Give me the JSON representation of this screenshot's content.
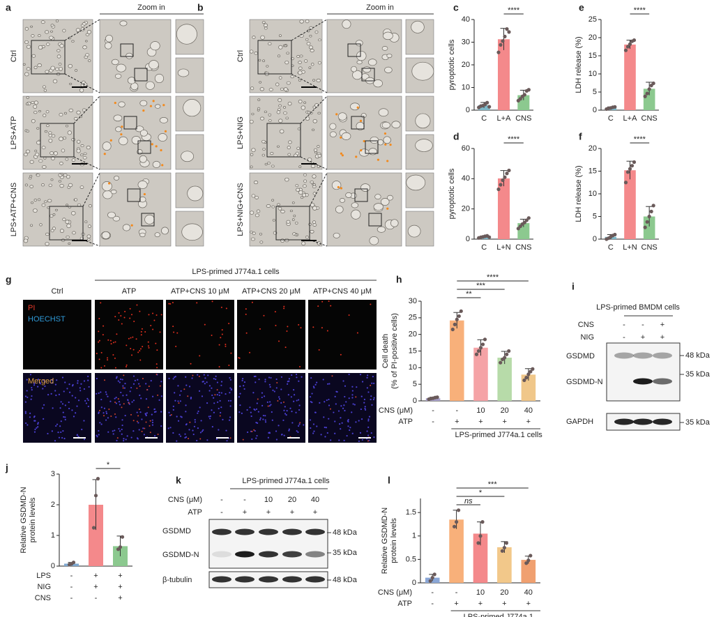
{
  "panel_labels": [
    "a",
    "b",
    "c",
    "d",
    "e",
    "f",
    "g",
    "h",
    "i",
    "j",
    "k",
    "l"
  ],
  "micrographs": [
    {
      "header": "Zoom in",
      "rows": [
        "Ctrl",
        "LPS+ATP",
        "LPS+ATP+CNS"
      ]
    },
    {
      "header": "Zoom in",
      "rows": [
        "Ctrl",
        "LPS+NIG",
        "LPS+NIG+CNS"
      ]
    }
  ],
  "fluorescence": {
    "title": "LPS-primed J774a.1 cells",
    "columns": [
      "Ctrl",
      "ATP",
      "ATP+CNS 10 μM",
      "ATP+CNS 20 μM",
      "ATP+CNS 40 μM"
    ],
    "channels": [
      "PI",
      "HOECHST"
    ],
    "merged": "Merged"
  },
  "blots": [
    {
      "title": "LPS-primed BMDM cells",
      "conditions": [
        {
          "label": "CNS",
          "values": [
            "-",
            "-",
            "+"
          ]
        },
        {
          "label": "NIG",
          "values": [
            "-",
            "+",
            "+"
          ]
        }
      ],
      "bands": [
        "GSDMD",
        "GSDMD-N",
        "GAPDH"
      ],
      "markers": [
        "48 kDa",
        "35 kDa",
        "35 kDa"
      ]
    },
    {
      "title": "LPS-primed J774a.1 cells",
      "conditions": [
        {
          "label": "CNS (μM)",
          "values": [
            "-",
            "-",
            "10",
            "20",
            "40"
          ]
        },
        {
          "label": "ATP",
          "values": [
            "-",
            "+",
            "+",
            "+",
            "+"
          ]
        }
      ],
      "bands": [
        "GSDMD",
        "GSDMD-N",
        "β-tubulin"
      ],
      "markers": [
        "48 kDa",
        "35 kDa",
        "48 kDa"
      ]
    }
  ],
  "chart_data": [
    {
      "type": "bar",
      "ylabel": [
        "pyroptotic cells"
      ],
      "categories": [
        "C",
        "L+A",
        "CNS"
      ],
      "values": [
        2.2,
        31.3,
        6.6
      ],
      "errors": [
        1.2,
        4.8,
        2.2
      ],
      "points": [
        [
          1.2,
          1.8,
          2.0,
          2.5,
          3.3,
          1.5
        ],
        [
          25.5,
          28.8,
          30.5,
          32.5,
          35.8,
          34.5
        ],
        [
          4.2,
          5.0,
          6.1,
          6.8,
          8.5,
          9.0
        ]
      ],
      "colors": [
        "#7fb8c8",
        "#f4898b",
        "#8cc98f"
      ],
      "ylim": [
        0,
        40
      ],
      "yticks": [
        0,
        10,
        20,
        30,
        40
      ],
      "significance": [
        "****"
      ]
    },
    {
      "type": "bar",
      "ylabel": [
        "pyroptotic cells"
      ],
      "categories": [
        "C",
        "L+N",
        "CNS"
      ],
      "values": [
        1.5,
        40.2,
        10.6
      ],
      "errors": [
        0.6,
        5.2,
        2.6
      ],
      "points": [
        [
          0.8,
          1.2,
          1.5,
          1.9,
          2.2,
          1.3
        ],
        [
          33,
          36,
          39,
          41,
          43.5,
          45.5
        ],
        [
          7,
          8.5,
          10,
          11,
          12.5,
          14
        ]
      ],
      "colors": [
        "#7fb8c8",
        "#f4898b",
        "#8cc98f"
      ],
      "ylim": [
        0,
        60
      ],
      "yticks": [
        0,
        20,
        40,
        60
      ],
      "significance": [
        "****"
      ]
    },
    {
      "type": "bar",
      "ylabel": [
        "LDH release (%)"
      ],
      "categories": [
        "C",
        "L+A",
        "CNS"
      ],
      "values": [
        0.6,
        18.1,
        5.9
      ],
      "errors": [
        0.3,
        1.2,
        1.8
      ],
      "points": [
        [
          0.3,
          0.5,
          0.6,
          0.8,
          0.9
        ],
        [
          16.5,
          17.5,
          18.2,
          19,
          19.3
        ],
        [
          3.8,
          4.6,
          5.8,
          6.8,
          7.4
        ]
      ],
      "colors": [
        "#7fb8c8",
        "#f4898b",
        "#8cc98f"
      ],
      "ylim": [
        0,
        25
      ],
      "yticks": [
        0,
        5,
        10,
        15,
        20,
        25
      ],
      "significance": [
        "****"
      ]
    },
    {
      "type": "bar",
      "ylabel": [
        "LDH release (%)"
      ],
      "categories": [
        "C",
        "L+N",
        "CNS"
      ],
      "values": [
        0.5,
        15.2,
        5.0
      ],
      "errors": [
        0.5,
        2.0,
        2.2
      ],
      "points": [
        [
          0,
          0.2,
          0.5,
          0.8,
          1.0
        ],
        [
          12.5,
          14.8,
          15.5,
          16.2,
          17.0
        ],
        [
          2.6,
          3.8,
          5.0,
          6.1,
          7.4
        ]
      ],
      "colors": [
        "#7fb8c8",
        "#f4898b",
        "#8cc98f"
      ],
      "ylim": [
        0,
        20
      ],
      "yticks": [
        0,
        5,
        10,
        15,
        20
      ],
      "significance": [
        "****"
      ]
    },
    {
      "type": "bar",
      "ylabel": [
        "Cell death",
        "(% of PI-positive cells)"
      ],
      "rows": [
        {
          "label": "CNS (μM)",
          "values": [
            "-",
            "-",
            "10",
            "20",
            "40"
          ]
        },
        {
          "label": "ATP",
          "values": [
            "-",
            "+",
            "+",
            "+",
            "+"
          ]
        }
      ],
      "footer": "LPS-primed J774a.1 cells",
      "values": [
        0.8,
        24.2,
        16.0,
        13.0,
        7.9
      ],
      "errors": [
        0.3,
        2.4,
        2.4,
        1.9,
        1.8
      ],
      "points": [
        [
          0.5,
          0.7,
          0.8,
          1.0,
          1.1
        ],
        [
          21.5,
          23,
          24.5,
          25.5,
          27
        ],
        [
          14,
          15,
          16,
          17,
          18.5
        ],
        [
          11.5,
          12.5,
          13,
          14,
          15
        ],
        [
          6.2,
          7,
          8,
          8.8,
          9.6
        ]
      ],
      "colors": [
        "#a79fc9",
        "#f8b07a",
        "#f5a3a6",
        "#b7dba9",
        "#f0c78a"
      ],
      "ylim": [
        0,
        30
      ],
      "yticks": [
        0,
        5,
        10,
        15,
        20,
        25,
        30
      ],
      "significance": [
        "**",
        "***",
        "****"
      ]
    },
    {
      "type": "bar",
      "ylabel": [
        "Relative GSDMD-N",
        "protein levels"
      ],
      "rows": [
        {
          "label": "LPS",
          "values": [
            "-",
            "+",
            "+"
          ]
        },
        {
          "label": "NIG",
          "values": [
            "-",
            "+",
            "+"
          ]
        },
        {
          "label": "CNS",
          "values": [
            "-",
            "-",
            "+"
          ]
        }
      ],
      "values": [
        0.08,
        2.0,
        0.65
      ],
      "errors": [
        0.04,
        0.82,
        0.33
      ],
      "points": [
        [
          0.05,
          0.07,
          0.12
        ],
        [
          1.25,
          2.3,
          2.85
        ],
        [
          0.55,
          0.62,
          0.95
        ]
      ],
      "colors": [
        "#7fa8d0",
        "#f4898b",
        "#8cc98f"
      ],
      "ylim": [
        0,
        3
      ],
      "yticks": [
        0,
        1,
        2,
        3
      ],
      "significance": [
        "*"
      ]
    },
    {
      "type": "bar",
      "ylabel": [
        "Relative GSDMD-N",
        "protein levels"
      ],
      "rows": [
        {
          "label": "CNS (μM)",
          "values": [
            "-",
            "-",
            "10",
            "20",
            "40"
          ]
        },
        {
          "label": "ATP",
          "values": [
            "-",
            "+",
            "+",
            "+",
            "+"
          ]
        }
      ],
      "footer": "LPS-primed J774a.1",
      "values": [
        0.11,
        1.35,
        1.05,
        0.76,
        0.49
      ],
      "errors": [
        0.07,
        0.2,
        0.25,
        0.12,
        0.08
      ],
      "points": [
        [
          0.04,
          0.11,
          0.18
        ],
        [
          1.2,
          1.3,
          1.55
        ],
        [
          0.85,
          1.0,
          1.3
        ],
        [
          0.68,
          0.75,
          0.85
        ],
        [
          0.42,
          0.48,
          0.58
        ]
      ],
      "colors": [
        "#8aa6d6",
        "#f8b07a",
        "#f4898b",
        "#f2c88a",
        "#f0a070"
      ],
      "ylim": [
        0,
        1.8
      ],
      "yticks": [
        0,
        0.5,
        1,
        1.5
      ],
      "significance": [
        "ns",
        "*",
        "***"
      ]
    }
  ]
}
